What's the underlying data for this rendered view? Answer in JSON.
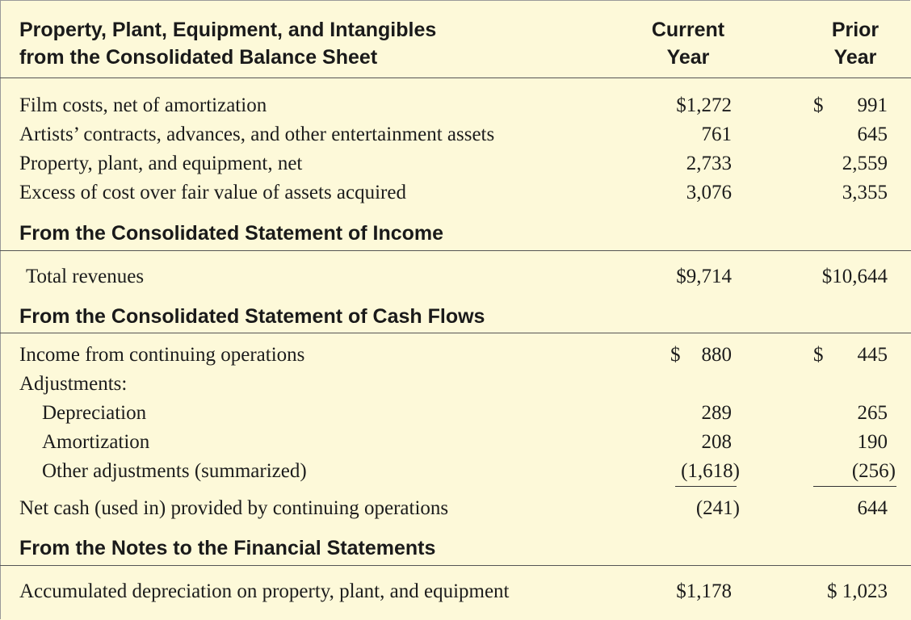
{
  "header": {
    "title_line1": "Property, Plant, Equipment, and Intangibles",
    "title_line2": "from the Consolidated Balance Sheet",
    "current_line1": "Current",
    "current_line2": "Year",
    "prior_line1": "Prior",
    "prior_line2": "Year"
  },
  "balance_sheet": [
    {
      "label": "Film costs, net of amortization",
      "current": "$1,272",
      "prior_dollar": "$",
      "prior": "991"
    },
    {
      "label": "Artists’ contracts, advances, and other entertainment assets",
      "current": "761",
      "prior": "645"
    },
    {
      "label": "Property, plant, and equipment, net",
      "current": "2,733",
      "prior": "2,559"
    },
    {
      "label": "Excess of cost over fair value of assets acquired",
      "current": "3,076",
      "prior": "3,355"
    }
  ],
  "income": {
    "heading": "From the Consolidated Statement of Income",
    "label": "Total revenues",
    "current": "$9,714",
    "prior": "$10,644"
  },
  "cash_flows": {
    "heading": "From the Consolidated Statement of Cash Flows",
    "income_label": "Income from continuing operations",
    "income_current_dollar": "$",
    "income_current": "880",
    "income_prior_dollar": "$",
    "income_prior": "445",
    "adjustments_label": "Adjustments:",
    "depreciation_label": "Depreciation",
    "depreciation_current": "289",
    "depreciation_prior": "265",
    "amortization_label": "Amortization",
    "amortization_current": "208",
    "amortization_prior": "190",
    "other_label": "Other adjustments (summarized)",
    "other_current": "(1,618)",
    "other_prior": "(256)",
    "net_label": "Net cash (used in) provided by continuing operations",
    "net_current": "(241)",
    "net_prior": "644"
  },
  "notes": {
    "heading": "From the Notes to the Financial Statements",
    "label": "Accumulated depreciation on property, plant, and equipment",
    "current": "$1,178",
    "prior": "$ 1,023"
  }
}
